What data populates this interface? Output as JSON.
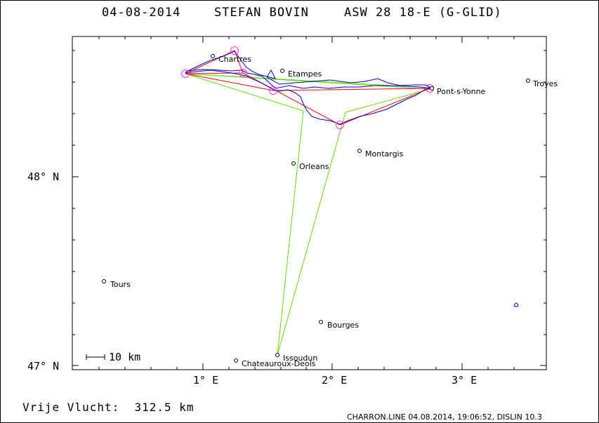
{
  "header": {
    "date": "04-08-2014",
    "pilot": "STEFAN BOVIN",
    "glider": "ASW 28 18-E (G-GLID)"
  },
  "axes": {
    "lat_labels": [
      "48° N",
      "47° N"
    ],
    "lon_labels": [
      "1° E",
      "2° E",
      "3° E"
    ]
  },
  "scale_bar": {
    "label": "10 km"
  },
  "footer": {
    "distance": "Vrije Vlucht:  312.5 km",
    "credit": "CHARRON.LINE 04.08.2014, 19:06:52, DISLIN 10.3"
  },
  "cities": [
    {
      "name": "Chartres"
    },
    {
      "name": "Etampes"
    },
    {
      "name": "Troyes"
    },
    {
      "name": "Pont-s-Yonne"
    },
    {
      "name": "Montargis"
    },
    {
      "name": "Orleans"
    },
    {
      "name": "Tours"
    },
    {
      "name": "Bourges"
    },
    {
      "name": "Issoudun"
    },
    {
      "name": "Chateauroux-Deols"
    }
  ],
  "colors": {
    "track": "#0000cc",
    "task": "#ff0000",
    "sector": "#66dd00",
    "turnpoint": "#ff33ff"
  }
}
